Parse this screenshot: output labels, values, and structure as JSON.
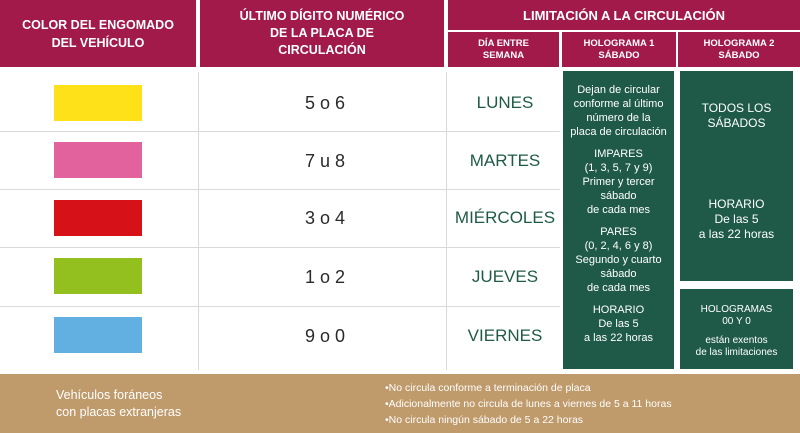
{
  "header": {
    "col1": [
      "COLOR DEL ENGOMADO",
      "DEL VEHÍCULO"
    ],
    "col2": [
      "ÚLTIMO DÍGITO NUMÉRICO",
      "DE LA PLACA DE",
      "CIRCULACIÓN"
    ],
    "col3": "LIMITACIÓN A LA CIRCULACIÓN",
    "sub1": [
      "DÍA ENTRE",
      "SEMANA"
    ],
    "sub2": [
      "HOLOGRAMA 1",
      "SÁBADO"
    ],
    "sub3": [
      "HOLOGRAMA 2",
      "SÁBADO"
    ]
  },
  "rows": [
    {
      "color": "#ffe119",
      "digits": "5 o 6",
      "day": "LUNES"
    },
    {
      "color": "#e2629e",
      "digits": "7 u 8",
      "day": "MARTES"
    },
    {
      "color": "#d61118",
      "digits": "3 o 4",
      "day": "MIÉRCOLES"
    },
    {
      "color": "#93c01f",
      "digits": "1 o 2",
      "day": "JUEVES"
    },
    {
      "color": "#62afe1",
      "digits": "9 o 0",
      "day": "VIERNES"
    }
  ],
  "holograma1": {
    "p1": [
      "Dejan de circular",
      "conforme al último",
      "número de la",
      "placa de circulación"
    ],
    "p2": [
      "IMPARES",
      "(1, 3, 5, 7 y 9)",
      "Primer y tercer",
      "sábado",
      "de cada mes"
    ],
    "p3": [
      "PARES",
      "(0, 2, 4, 6 y 8)",
      "Segundo y cuarto",
      "sábado",
      "de cada mes"
    ],
    "p4": [
      "HORARIO",
      "De las 5",
      "a las 22 horas"
    ]
  },
  "holograma2": {
    "a": [
      "TODOS LOS",
      "SÁBADOS"
    ],
    "b": [
      "HORARIO",
      "De las 5",
      "a las 22 horas"
    ]
  },
  "holograma00": {
    "a": [
      "HOLOGRAMAS",
      "00 Y 0"
    ],
    "b": [
      "están exentos",
      "de las limitaciones"
    ]
  },
  "footer": {
    "left": [
      "Vehículos foráneos",
      "con placas extranjeras"
    ],
    "right": [
      "•No circula conforme a terminación de placa",
      "•Adicionalmente no circula de lunes a viernes de 5 a 11 horas",
      "•No circula ningún sábado de 5 a 22 horas"
    ]
  }
}
